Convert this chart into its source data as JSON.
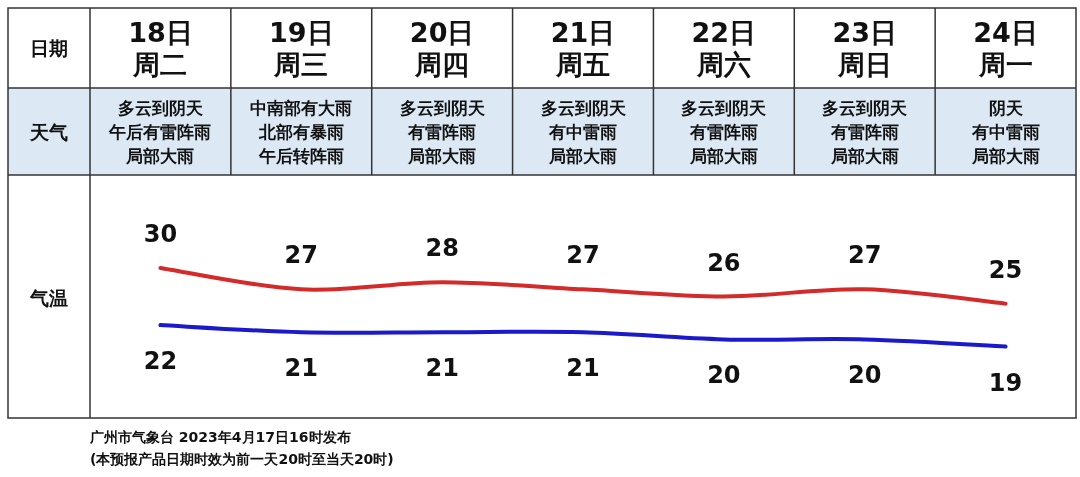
{
  "chart_data": {
    "type": "line",
    "categories": [
      "18日周二",
      "19日周三",
      "20日周四",
      "21日周五",
      "22日周六",
      "23日周日",
      "24日周一"
    ],
    "series": [
      {
        "color": "#d42a2a",
        "values": [
          30,
          27,
          28,
          27,
          26,
          27,
          25
        ]
      },
      {
        "color": "#1a1acc",
        "values": [
          22,
          21,
          21,
          21,
          20,
          20,
          19
        ]
      }
    ],
    "ylim": [
      9,
      43
    ],
    "data_labels": true,
    "marker": "none",
    "line_style": "solid",
    "grid": false,
    "annotations": [
      "日期",
      "天气",
      "气温",
      "多云到阴天",
      "午后有雷阵雨",
      "局部大雨",
      "中南部有大雨",
      "北部有暴雨",
      "午后转阵雨",
      "多云到阴天",
      "有雷阵雨",
      "局部大雨",
      "多云到阴天",
      "有中雷雨",
      "局部大雨",
      "多云到阴天",
      "有雷阵雨",
      "局部大雨",
      "多云到阴天",
      "有雷阵雨",
      "局部大雨",
      "阴天",
      "有中雷雨",
      "局部大雨",
      "广州市气象台 2023年4月17日16时发布",
      "(本预报产品日期时效为前一天20时至当天20时)"
    ]
  }
}
